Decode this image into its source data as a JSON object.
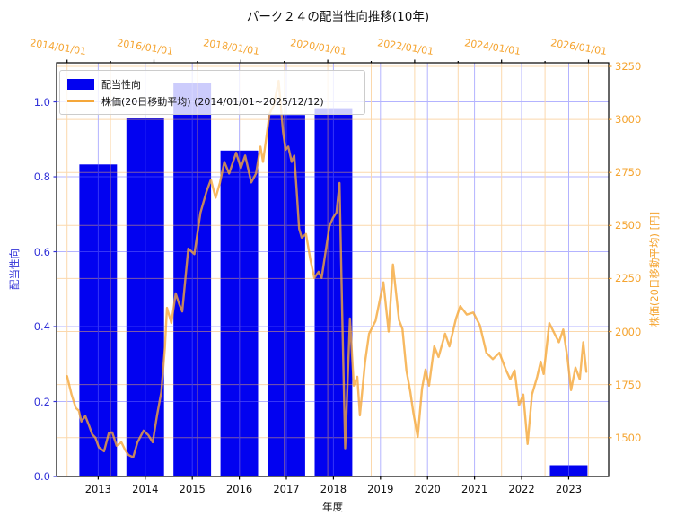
{
  "title": "パーク２４の配当性向推移(10年)",
  "legend": {
    "items": [
      {
        "label": "配当性向",
        "type": "bar",
        "color": "#0202f0"
      },
      {
        "label": "株価(20日移動平均) (2014/01/01~2025/12/12)",
        "type": "line",
        "color": "#f5a73a"
      }
    ]
  },
  "chart_data": {
    "type": "combo",
    "title": "パーク２４の配当性向推移(10年)",
    "background": "#ffffff",
    "grid": {
      "on": true,
      "left_color": "#6a6aff",
      "right_color": "#f8b25c",
      "opacity": 0.5
    },
    "axes": {
      "bottom": {
        "label": "年度",
        "tick_labels": [
          "2013",
          "2014",
          "2015",
          "2016",
          "2017",
          "2018",
          "2019",
          "2020",
          "2021",
          "2022",
          "2023"
        ],
        "ticks": [
          2013,
          2014,
          2015,
          2016,
          2017,
          2018,
          2019,
          2020,
          2021,
          2022,
          2023
        ],
        "range": [
          2012.115,
          2023.85
        ],
        "color": "#111111"
      },
      "top": {
        "tick_labels": [
          "2014/01/01",
          "2016/01/01",
          "2018/01/01",
          "2020/01/01",
          "2022/01/01",
          "2024/01/01",
          "2026/01/01"
        ],
        "ticks": [
          2014,
          2016,
          2018,
          2020,
          2022,
          2024,
          2026
        ],
        "minor_ticks": [
          2015,
          2017,
          2019,
          2021,
          2023,
          2025
        ],
        "grid_years": [
          2014,
          2015,
          2016,
          2017,
          2018,
          2019,
          2020,
          2021,
          2022,
          2023,
          2024,
          2025,
          2026
        ],
        "range": [
          2013.758,
          2026.465
        ],
        "color": "#f5a430"
      },
      "left": {
        "label": "配当性向",
        "tick_labels": [
          "0.0",
          "0.2",
          "0.4",
          "0.6",
          "0.8",
          "1.0"
        ],
        "ticks": [
          0.0,
          0.2,
          0.4,
          0.6,
          0.8,
          1.0
        ],
        "range": [
          0,
          1.1043
        ],
        "color": "#3232d8"
      },
      "right": {
        "label": "株価(20日移動平均) [円]",
        "tick_labels": [
          "1500",
          "1750",
          "2000",
          "2250",
          "2500",
          "2750",
          "3000",
          "3250"
        ],
        "ticks": [
          1500,
          1750,
          2000,
          2250,
          2500,
          2750,
          3000,
          3250
        ],
        "range": [
          1317,
          3267
        ],
        "color": "#f5a430"
      }
    },
    "series": [
      {
        "name": "配当性向",
        "type": "bar",
        "axis": "left",
        "color": "#0202f0",
        "bar_width_years": 0.8,
        "categories": [
          2013,
          2014,
          2015,
          2016,
          2017,
          2018,
          2019,
          2020,
          2021,
          2022,
          2023
        ],
        "values": [
          0.833,
          0.957,
          1.051,
          0.87,
          0.965,
          0.983,
          0,
          0,
          0,
          0,
          0.03
        ]
      },
      {
        "name": "株価(20日移動平均)",
        "type": "line",
        "axis": "right",
        "color": "#f5a73a",
        "opacity": 0.8,
        "points": [
          [
            2014.0,
            1790
          ],
          [
            2014.1,
            1705
          ],
          [
            2014.2,
            1640
          ],
          [
            2014.27,
            1627
          ],
          [
            2014.33,
            1576
          ],
          [
            2014.42,
            1602
          ],
          [
            2014.5,
            1560
          ],
          [
            2014.58,
            1515
          ],
          [
            2014.65,
            1500
          ],
          [
            2014.73,
            1455
          ],
          [
            2014.85,
            1436
          ],
          [
            2014.96,
            1521
          ],
          [
            2015.04,
            1525
          ],
          [
            2015.14,
            1462
          ],
          [
            2015.25,
            1478
          ],
          [
            2015.34,
            1440
          ],
          [
            2015.41,
            1419
          ],
          [
            2015.52,
            1407
          ],
          [
            2015.62,
            1478
          ],
          [
            2015.76,
            1533
          ],
          [
            2015.87,
            1512
          ],
          [
            2015.97,
            1478
          ],
          [
            2016.07,
            1605
          ],
          [
            2016.17,
            1715
          ],
          [
            2016.25,
            1920
          ],
          [
            2016.3,
            2112
          ],
          [
            2016.4,
            2040
          ],
          [
            2016.5,
            2180
          ],
          [
            2016.58,
            2130
          ],
          [
            2016.65,
            2095
          ],
          [
            2016.79,
            2391
          ],
          [
            2016.93,
            2365
          ],
          [
            2017.07,
            2560
          ],
          [
            2017.21,
            2661
          ],
          [
            2017.31,
            2716
          ],
          [
            2017.42,
            2631
          ],
          [
            2017.52,
            2703
          ],
          [
            2017.62,
            2800
          ],
          [
            2017.73,
            2745
          ],
          [
            2017.89,
            2843
          ],
          [
            2018.0,
            2771
          ],
          [
            2018.1,
            2830
          ],
          [
            2018.24,
            2703
          ],
          [
            2018.35,
            2745
          ],
          [
            2018.45,
            2872
          ],
          [
            2018.51,
            2800
          ],
          [
            2018.66,
            3026
          ],
          [
            2018.76,
            3068
          ],
          [
            2018.87,
            3182
          ],
          [
            2018.97,
            2941
          ],
          [
            2019.03,
            2857
          ],
          [
            2019.09,
            2872
          ],
          [
            2019.17,
            2800
          ],
          [
            2019.23,
            2830
          ],
          [
            2019.28,
            2675
          ],
          [
            2019.34,
            2485
          ],
          [
            2019.4,
            2443
          ],
          [
            2019.5,
            2460
          ],
          [
            2019.6,
            2340
          ],
          [
            2019.69,
            2253
          ],
          [
            2019.79,
            2282
          ],
          [
            2019.86,
            2253
          ],
          [
            2020.04,
            2498
          ],
          [
            2020.12,
            2536
          ],
          [
            2020.2,
            2561
          ],
          [
            2020.27,
            2700
          ],
          [
            2020.33,
            2100
          ],
          [
            2020.4,
            1450
          ],
          [
            2020.51,
            2062
          ],
          [
            2020.6,
            1745
          ],
          [
            2020.68,
            1787
          ],
          [
            2020.74,
            1605
          ],
          [
            2020.86,
            1858
          ],
          [
            2020.95,
            1990
          ],
          [
            2021.1,
            2050
          ],
          [
            2021.28,
            2232
          ],
          [
            2021.4,
            2000
          ],
          [
            2021.5,
            2316
          ],
          [
            2021.64,
            2054
          ],
          [
            2021.72,
            2012
          ],
          [
            2021.81,
            1817
          ],
          [
            2021.9,
            1715
          ],
          [
            2021.97,
            1618
          ],
          [
            2022.07,
            1504
          ],
          [
            2022.17,
            1732
          ],
          [
            2022.25,
            1821
          ],
          [
            2022.33,
            1745
          ],
          [
            2022.45,
            1930
          ],
          [
            2022.55,
            1880
          ],
          [
            2022.7,
            1990
          ],
          [
            2022.8,
            1930
          ],
          [
            2022.95,
            2060
          ],
          [
            2023.05,
            2120
          ],
          [
            2023.2,
            2080
          ],
          [
            2023.35,
            2090
          ],
          [
            2023.5,
            2030
          ],
          [
            2023.65,
            1900
          ],
          [
            2023.8,
            1870
          ],
          [
            2023.95,
            1900
          ],
          [
            2024.1,
            1820
          ],
          [
            2024.2,
            1775
          ],
          [
            2024.3,
            1817
          ],
          [
            2024.4,
            1652
          ],
          [
            2024.5,
            1703
          ],
          [
            2024.6,
            1470
          ],
          [
            2024.7,
            1703
          ],
          [
            2024.82,
            1787
          ],
          [
            2024.9,
            1858
          ],
          [
            2024.97,
            1800
          ],
          [
            2025.1,
            2040
          ],
          [
            2025.22,
            1990
          ],
          [
            2025.32,
            1950
          ],
          [
            2025.42,
            2010
          ],
          [
            2025.52,
            1870
          ],
          [
            2025.6,
            1724
          ],
          [
            2025.7,
            1830
          ],
          [
            2025.8,
            1775
          ],
          [
            2025.88,
            1950
          ],
          [
            2025.95,
            1810
          ]
        ]
      }
    ]
  }
}
